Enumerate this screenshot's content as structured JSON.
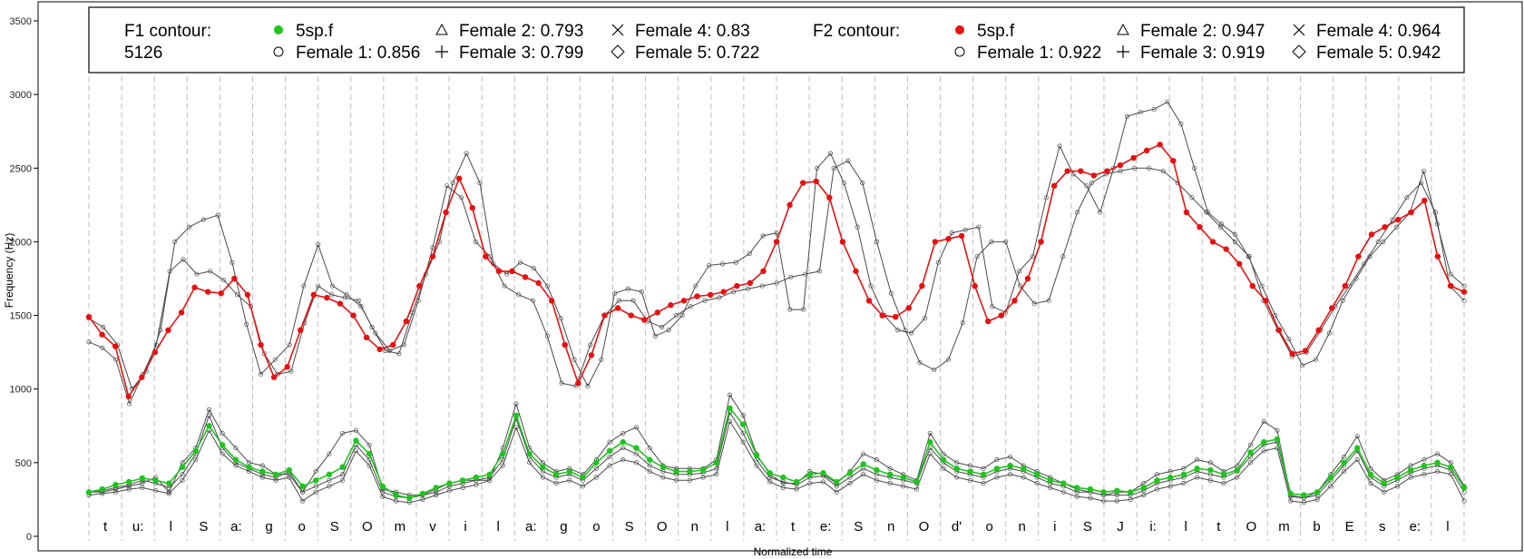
{
  "chart_data": {
    "type": "line",
    "title": "",
    "xlabel": "Normalized time",
    "ylabel": "Frequency (Hz)",
    "ylim": [
      0,
      3500
    ],
    "yticks": [
      0,
      500,
      1000,
      1500,
      2000,
      2500,
      3000,
      3500
    ],
    "grid": "vertical dashed lines at phone boundaries",
    "legend_position": "top",
    "legend": {
      "f1_title_line1": "F1 contour:",
      "f1_title_line2": "5126",
      "f1_entries": [
        {
          "symbol": "filled-circle-green",
          "label": "5sp.f"
        },
        {
          "symbol": "triangle",
          "label": "Female 2: 0.793"
        },
        {
          "symbol": "cross",
          "label": "Female 4: 0.83"
        },
        {
          "symbol": "circle",
          "label": "Female 1: 0.856"
        },
        {
          "symbol": "plus",
          "label": "Female 3: 0.799"
        },
        {
          "symbol": "diamond",
          "label": "Female 5: 0.722"
        }
      ],
      "f2_title": "F2 contour:",
      "f2_entries": [
        {
          "symbol": "filled-circle-red",
          "label": "5sp.f"
        },
        {
          "symbol": "triangle",
          "label": "Female 2: 0.947"
        },
        {
          "symbol": "cross",
          "label": "Female 4: 0.964"
        },
        {
          "symbol": "circle",
          "label": "Female 1: 0.922"
        },
        {
          "symbol": "plus",
          "label": "Female 3: 0.919"
        },
        {
          "symbol": "diamond",
          "label": "Female 5: 0.942"
        }
      ]
    },
    "phones": [
      "t",
      "u:",
      "l",
      "S",
      "a:",
      "g",
      "o",
      "S",
      "O",
      "m",
      "v",
      "i",
      "l",
      "a:",
      "g",
      "o",
      "S",
      "O",
      "n",
      "l",
      "a:",
      "t",
      "e:",
      "S",
      "n",
      "O",
      "d'",
      "o",
      "n",
      "i",
      "S",
      "J",
      "i:",
      "l",
      "t",
      "O",
      "m",
      "b",
      "E",
      "s",
      "e:",
      "l"
    ],
    "colors": {
      "f1": "#1fc41f",
      "f2": "#e81010",
      "speakers": "#4a4a4a",
      "grid": "#bdbdbd"
    },
    "f1_5sp": [
      300,
      320,
      350,
      370,
      395,
      380,
      360,
      470,
      580,
      750,
      620,
      520,
      470,
      440,
      420,
      450,
      340,
      380,
      420,
      470,
      650,
      560,
      340,
      280,
      260,
      290,
      330,
      360,
      380,
      400,
      420,
      560,
      820,
      560,
      470,
      420,
      440,
      400,
      500,
      580,
      640,
      600,
      520,
      470,
      440,
      440,
      450,
      500,
      870,
      760,
      550,
      430,
      400,
      370,
      420,
      430,
      370,
      430,
      490,
      450,
      420,
      400,
      370,
      640,
      520,
      460,
      440,
      420,
      460,
      480,
      460,
      420,
      380,
      360,
      330,
      320,
      300,
      310,
      300,
      330,
      380,
      400,
      420,
      460,
      450,
      420,
      450,
      570,
      640,
      660,
      290,
      280,
      300,
      400,
      500,
      600,
      420,
      360,
      400,
      450,
      480,
      500,
      470,
      330
    ],
    "f2_5sp": [
      1490,
      1370,
      1290,
      950,
      1080,
      1250,
      1400,
      1520,
      1690,
      1660,
      1650,
      1750,
      1640,
      1300,
      1080,
      1150,
      1400,
      1640,
      1620,
      1580,
      1500,
      1350,
      1270,
      1300,
      1460,
      1700,
      1900,
      2200,
      2430,
      2230,
      1900,
      1800,
      1800,
      1760,
      1720,
      1600,
      1300,
      1040,
      1230,
      1500,
      1550,
      1500,
      1470,
      1520,
      1570,
      1600,
      1630,
      1640,
      1660,
      1700,
      1720,
      1800,
      2000,
      2250,
      2400,
      2410,
      2300,
      2000,
      1800,
      1600,
      1500,
      1490,
      1550,
      1700,
      2000,
      2020,
      2040,
      1700,
      1460,
      1500,
      1600,
      1750,
      2000,
      2380,
      2480,
      2480,
      2450,
      2480,
      2520,
      2570,
      2620,
      2660,
      2550,
      2200,
      2100,
      2000,
      1950,
      1850,
      1700,
      1600,
      1400,
      1240,
      1260,
      1400,
      1550,
      1700,
      1900,
      2050,
      2100,
      2150,
      2200,
      2280,
      1900,
      1700,
      1660
    ],
    "f1_speakers": [
      [
        300,
        300,
        320,
        340,
        360,
        400,
        300,
        500,
        600,
        860,
        700,
        600,
        500,
        480,
        420,
        420,
        300,
        440,
        560,
        700,
        720,
        620,
        320,
        300,
        280,
        280,
        320,
        360,
        380,
        380,
        380,
        600,
        900,
        600,
        500,
        440,
        460,
        420,
        520,
        640,
        700,
        740,
        600,
        480,
        460,
        460,
        460,
        520,
        960,
        820,
        560,
        420,
        360,
        360,
        440,
        420,
        360,
        440,
        560,
        520,
        460,
        420,
        380,
        700,
        560,
        500,
        480,
        460,
        520,
        540,
        480,
        440,
        400,
        360,
        320,
        300,
        280,
        300,
        300,
        360,
        420,
        440,
        460,
        520,
        500,
        440,
        480,
        620,
        780,
        720,
        280,
        260,
        300,
        420,
        540,
        680,
        460,
        380,
        420,
        480,
        520,
        560,
        500,
        340
      ],
      [
        300,
        310,
        330,
        350,
        380,
        360,
        330,
        420,
        560,
        820,
        600,
        500,
        460,
        420,
        400,
        440,
        300,
        340,
        380,
        420,
        620,
        520,
        300,
        270,
        260,
        280,
        300,
        340,
        360,
        380,
        400,
        520,
        800,
        540,
        440,
        400,
        420,
        380,
        460,
        540,
        600,
        560,
        480,
        440,
        420,
        420,
        430,
        460,
        840,
        700,
        520,
        400,
        370,
        350,
        400,
        410,
        340,
        400,
        460,
        420,
        400,
        380,
        360,
        600,
        500,
        440,
        420,
        400,
        440,
        460,
        440,
        400,
        360,
        340,
        300,
        300,
        280,
        280,
        280,
        310,
        360,
        380,
        400,
        440,
        420,
        400,
        440,
        540,
        620,
        640,
        270,
        260,
        280,
        380,
        480,
        580,
        400,
        340,
        380,
        430,
        460,
        480,
        450,
        300
      ],
      [
        280,
        290,
        300,
        320,
        330,
        310,
        290,
        380,
        520,
        720,
        560,
        480,
        440,
        400,
        380,
        400,
        240,
        300,
        340,
        380,
        580,
        480,
        270,
        240,
        230,
        250,
        280,
        310,
        330,
        350,
        380,
        480,
        740,
        500,
        400,
        360,
        380,
        340,
        400,
        480,
        520,
        500,
        440,
        400,
        380,
        380,
        400,
        420,
        780,
        640,
        480,
        370,
        330,
        320,
        360,
        370,
        300,
        360,
        420,
        380,
        360,
        340,
        320,
        560,
        460,
        400,
        380,
        360,
        400,
        420,
        400,
        360,
        330,
        300,
        270,
        260,
        240,
        240,
        250,
        280,
        320,
        340,
        360,
        400,
        380,
        360,
        400,
        500,
        580,
        600,
        240,
        230,
        250,
        340,
        440,
        520,
        360,
        300,
        340,
        400,
        420,
        440,
        420,
        240
      ]
    ],
    "f2_speakers": [
      [
        1320,
        1280,
        1200,
        900,
        1100,
        1300,
        1800,
        1880,
        1780,
        1800,
        1740,
        1640,
        1560,
        1240,
        1100,
        1120,
        1450,
        1700,
        1640,
        1620,
        1600,
        1420,
        1260,
        1240,
        1520,
        1780,
        2000,
        2400,
        2600,
        2400,
        1850,
        1780,
        1860,
        1820,
        1700,
        1480,
        1200,
        1020,
        1200,
        1650,
        1680,
        1660,
        1360,
        1400,
        1500,
        1700,
        1840,
        1850,
        1860,
        1920,
        2040,
        2060,
        1540,
        1540,
        2500,
        2600,
        2400,
        2100,
        1700,
        1500,
        1400,
        1380,
        1480,
        1860,
        2060,
        2080,
        2100,
        1560,
        1520,
        1800,
        1900,
        2300,
        2650,
        2460,
        2380,
        2200,
        2500,
        2850,
        2880,
        2900,
        2950,
        2800,
        2500,
        2200,
        2120,
        2050,
        1900,
        1700,
        1500,
        1340,
        1160,
        1200,
        1380,
        1600,
        1750,
        1900,
        2000,
        2100,
        2200,
        2480,
        2120,
        1780,
        1700
      ],
      [
        1480,
        1420,
        1300,
        1000,
        1120,
        1400,
        2000,
        2100,
        2150,
        2180,
        1860,
        1440,
        1100,
        1200,
        1300,
        1700,
        1980,
        1700,
        1640,
        1560,
        1380,
        1260,
        1300,
        1600,
        1960,
        2380,
        2300,
        2000,
        1900,
        1700,
        1640,
        1600,
        1360,
        1040,
        1020,
        1300,
        1500,
        1600,
        1600,
        1460,
        1420,
        1500,
        1560,
        1600,
        1620,
        1660,
        1680,
        1700,
        1720,
        1760,
        1780,
        1800,
        2500,
        2550,
        2400,
        2000,
        1650,
        1400,
        1180,
        1130,
        1200,
        1450,
        1900,
        2000,
        2000,
        1700,
        1580,
        1600,
        1900,
        2200,
        2400,
        2460,
        2480,
        2500,
        2500,
        2480,
        2400,
        2300,
        2200,
        2100,
        2000,
        1900,
        1600,
        1400,
        1220,
        1250,
        1400,
        1560,
        1700,
        1850,
        2000,
        2150,
        2300,
        2400,
        2200,
        1700,
        1600
      ]
    ]
  }
}
